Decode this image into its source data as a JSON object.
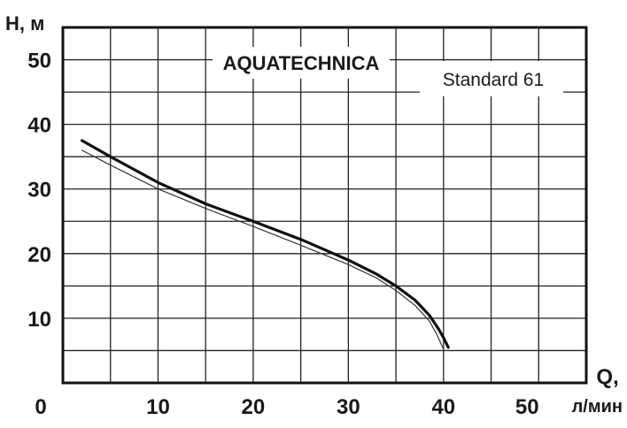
{
  "chart_data": {
    "type": "line",
    "brand": "AQUATECHNICA",
    "model": "Standard 61",
    "ylabel": "Н, м",
    "xlabel_symbol": "Q,",
    "xlabel_unit": "л/мин",
    "x_ticks": [
      "0",
      "10",
      "20",
      "30",
      "40",
      "50"
    ],
    "y_ticks": [
      "10",
      "20",
      "30",
      "40",
      "50"
    ],
    "xlim": [
      0,
      55
    ],
    "ylim": [
      0,
      55
    ],
    "grid": true,
    "series": [
      {
        "style": "thick",
        "color": "#111111",
        "x": [
          2,
          5,
          10,
          15,
          20,
          25,
          30,
          33,
          35,
          37,
          38.5,
          39.5,
          40,
          40.5
        ],
        "y": [
          37.5,
          35,
          31,
          27.7,
          25,
          22.2,
          19,
          16.8,
          15,
          12.8,
          10.5,
          8.3,
          7,
          5.5
        ]
      },
      {
        "style": "thin",
        "color": "#333333",
        "x": [
          2,
          5,
          10,
          15,
          20,
          25,
          30,
          33,
          35,
          37,
          38.5,
          39.3,
          40
        ],
        "y": [
          36,
          33.7,
          30,
          27,
          24.2,
          21.3,
          18.3,
          16.2,
          14.3,
          12,
          9.6,
          7.5,
          5.2
        ]
      }
    ]
  }
}
